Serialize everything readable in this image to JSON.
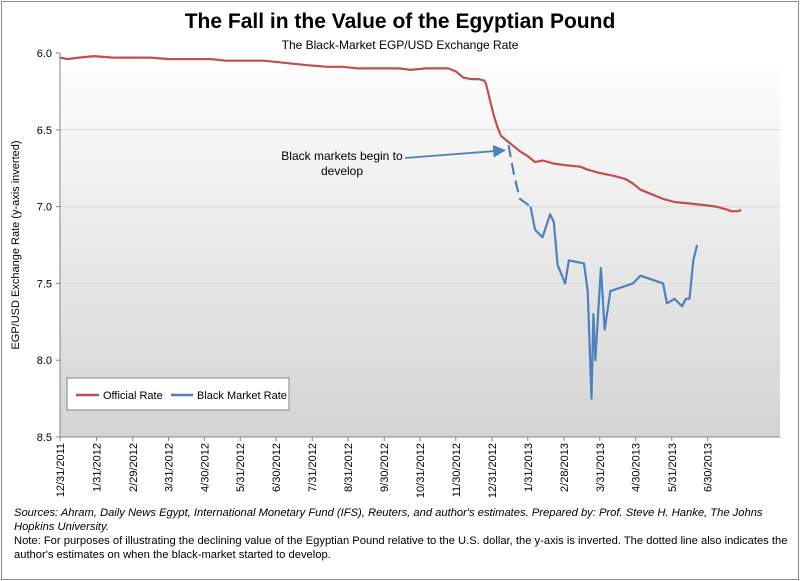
{
  "chart_data": {
    "type": "line",
    "title": "The Fall in the Value of the Egyptian Pound",
    "subtitle": "The Black-Market EGP/USD Exchange Rate",
    "xlabel": "",
    "ylabel": "EGP/USD Exchange Rate (y-axis inverted)",
    "ylim": [
      6.0,
      8.5
    ],
    "y_inverted": true,
    "yticks": [
      "6.0",
      "6.5",
      "7.0",
      "7.5",
      "8.0",
      "8.5"
    ],
    "x_range_days": [
      0,
      191
    ],
    "xticks": [
      {
        "label": "12/31/2011",
        "day": 0
      },
      {
        "label": "1/31/2012",
        "day": 9.7
      },
      {
        "label": "2/29/2012",
        "day": 19.3
      },
      {
        "label": "3/31/2012",
        "day": 28.8
      },
      {
        "label": "4/30/2012",
        "day": 38.3
      },
      {
        "label": "5/31/2012",
        "day": 47.8
      },
      {
        "label": "6/30/2012",
        "day": 57.3
      },
      {
        "label": "7/31/2012",
        "day": 66.9
      },
      {
        "label": "8/31/2012",
        "day": 76.4
      },
      {
        "label": "9/30/2012",
        "day": 86
      },
      {
        "label": "10/31/2012",
        "day": 95.5
      },
      {
        "label": "11/30/2012",
        "day": 105
      },
      {
        "label": "12/31/2012",
        "day": 114.6
      },
      {
        "label": "1/31/2013",
        "day": 124.1
      },
      {
        "label": "2/28/2013",
        "day": 133.7
      },
      {
        "label": "3/31/2013",
        "day": 143.2
      },
      {
        "label": "4/30/2013",
        "day": 152.7
      },
      {
        "label": "5/31/2013",
        "day": 162.3
      },
      {
        "label": "6/30/2013",
        "day": 171.8
      }
    ],
    "legend": {
      "position": "lower-left",
      "entries": [
        "Official Rate",
        "Black Market Rate"
      ]
    },
    "series": [
      {
        "name": "Official Rate",
        "color": "#c0504d",
        "points": [
          [
            0,
            6.03
          ],
          [
            2,
            6.04
          ],
          [
            5,
            6.03
          ],
          [
            9,
            6.02
          ],
          [
            14,
            6.03
          ],
          [
            19,
            6.03
          ],
          [
            24,
            6.03
          ],
          [
            29,
            6.04
          ],
          [
            34,
            6.04
          ],
          [
            40,
            6.04
          ],
          [
            44,
            6.05
          ],
          [
            49,
            6.05
          ],
          [
            54,
            6.05
          ],
          [
            58,
            6.06
          ],
          [
            62,
            6.07
          ],
          [
            66,
            6.08
          ],
          [
            71,
            6.09
          ],
          [
            75,
            6.09
          ],
          [
            79,
            6.1
          ],
          [
            83,
            6.1
          ],
          [
            86,
            6.1
          ],
          [
            90,
            6.1
          ],
          [
            93,
            6.11
          ],
          [
            97,
            6.1
          ],
          [
            100,
            6.1
          ],
          [
            103,
            6.1
          ],
          [
            105,
            6.12
          ],
          [
            107,
            6.16
          ],
          [
            109,
            6.17
          ],
          [
            111,
            6.17
          ],
          [
            112.5,
            6.18
          ],
          [
            113,
            6.2
          ],
          [
            114,
            6.3
          ],
          [
            115,
            6.4
          ],
          [
            116,
            6.48
          ],
          [
            117,
            6.54
          ],
          [
            118,
            6.56
          ],
          [
            120,
            6.6
          ],
          [
            122,
            6.64
          ],
          [
            124,
            6.67
          ],
          [
            126,
            6.71
          ],
          [
            128,
            6.7
          ],
          [
            131,
            6.72
          ],
          [
            134,
            6.73
          ],
          [
            138,
            6.74
          ],
          [
            140,
            6.76
          ],
          [
            143,
            6.78
          ],
          [
            147,
            6.8
          ],
          [
            150,
            6.82
          ],
          [
            152,
            6.85
          ],
          [
            154,
            6.89
          ],
          [
            157,
            6.92
          ],
          [
            160,
            6.95
          ],
          [
            163,
            6.97
          ],
          [
            167,
            6.98
          ],
          [
            171,
            6.99
          ],
          [
            174,
            7.0
          ],
          [
            177,
            7.02
          ],
          [
            178,
            7.03
          ],
          [
            180,
            7.03
          ],
          [
            180.7,
            7.02
          ]
        ]
      },
      {
        "name": "Black Market Rate",
        "color": "#4f81bd",
        "points": [
          [
            124.8,
            7.0
          ],
          [
            126,
            7.15
          ],
          [
            128,
            7.2
          ],
          [
            130,
            7.05
          ],
          [
            131,
            7.1
          ],
          [
            132,
            7.38
          ],
          [
            134,
            7.5
          ],
          [
            135,
            7.35
          ],
          [
            139,
            7.37
          ],
          [
            140,
            7.55
          ],
          [
            141,
            8.25
          ],
          [
            141.5,
            7.7
          ],
          [
            142,
            8.0
          ],
          [
            143.5,
            7.4
          ],
          [
            144.5,
            7.8
          ],
          [
            146,
            7.55
          ],
          [
            152,
            7.5
          ],
          [
            154,
            7.45
          ],
          [
            160,
            7.5
          ],
          [
            161,
            7.63
          ],
          [
            163,
            7.6
          ],
          [
            165,
            7.65
          ],
          [
            166,
            7.6
          ],
          [
            167,
            7.6
          ],
          [
            168,
            7.35
          ],
          [
            169,
            7.25
          ]
        ],
        "estimated_segment": [
          [
            119,
            6.6
          ],
          [
            120.5,
            6.8
          ],
          [
            122,
            6.95
          ],
          [
            124.8,
            7.0
          ]
        ]
      }
    ],
    "annotations": [
      {
        "text_lines": [
          "Black markets begin to",
          "develop"
        ],
        "arrow_to_day": 119,
        "arrow_to_value": 6.64
      }
    ]
  },
  "notes": {
    "sources": "Sources: Ahram, Daily News Egypt, International Monetary Fund (IFS), Reuters, and author's estimates. Prepared by: Prof. Steve H. Hanke, The Johns Hopkins University.",
    "note": "Note: For purposes of illustrating the declining value of the Egyptian Pound relative to the U.S. dollar, the y-axis is inverted. The dotted line also indicates the author's estimates on when the black-market started to develop."
  }
}
